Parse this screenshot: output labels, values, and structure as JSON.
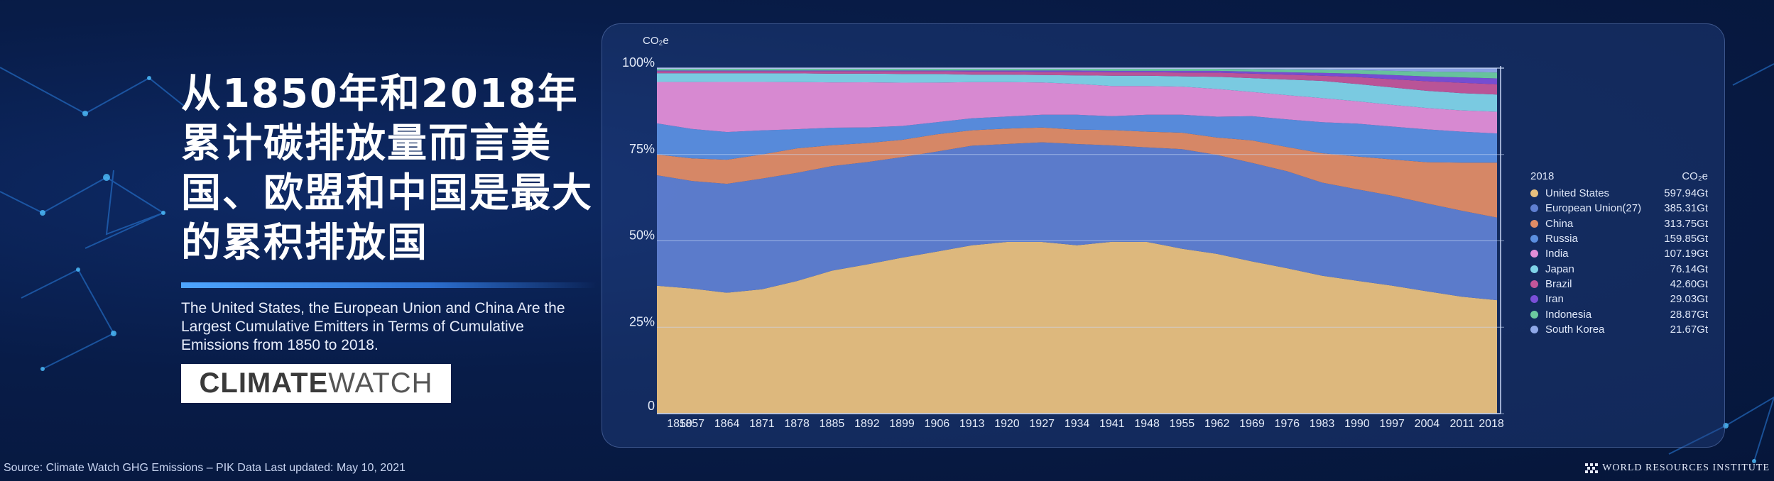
{
  "heading_zh": "从1850年和2018年累计碳排放量而言美国、欧盟和中国是最大的累积排放国",
  "heading_en": "The United States, the European Union and China Are the Largest Cumulative Emitters in Terms of Cumulative Emissions from 1850 to 2018.",
  "logo": {
    "bold": "CLIMATE",
    "light": "WATCH"
  },
  "source": "Source: Climate Watch GHG Emissions – PIK Data Last updated: May 10, 2021",
  "publisher": "WORLD RESOURCES INSTITUTE",
  "chart_data": {
    "type": "area",
    "stacked": true,
    "normalized": true,
    "ylabel": "CO₂e",
    "ylim": [
      0,
      100
    ],
    "ytick_labels": [
      "0",
      "25%",
      "50%",
      "75%",
      "100%"
    ],
    "x": [
      "1850",
      "1857",
      "1864",
      "1871",
      "1878",
      "1885",
      "1892",
      "1899",
      "1906",
      "1913",
      "1920",
      "1927",
      "1934",
      "1941",
      "1948",
      "1955",
      "1962",
      "1969",
      "1976",
      "1983",
      "1990",
      "1997",
      "2004",
      "2011",
      "2018"
    ],
    "grid": true,
    "legend": {
      "position": "right",
      "title": "2018",
      "value_header": "CO₂e"
    },
    "series": [
      {
        "name": "United States",
        "color": "#e8c07e",
        "total_2018": "597.94Gt",
        "values": [
          37,
          36,
          35,
          36,
          38,
          41,
          43,
          45,
          47,
          49,
          50,
          50,
          49,
          50,
          50,
          48,
          46,
          44,
          42,
          40,
          38.5,
          37,
          35.5,
          34,
          33
        ]
      },
      {
        "name": "European Union(27)",
        "color": "#5f7fd1",
        "total_2018": "385.31Gt",
        "values": [
          32,
          31,
          31.5,
          32,
          31,
          30,
          29.5,
          29,
          29,
          29,
          28.5,
          29,
          29.5,
          28,
          27.5,
          29,
          28.5,
          28.5,
          28,
          27,
          26.5,
          26,
          25.5,
          25,
          24
        ]
      },
      {
        "name": "China",
        "color": "#e08c66",
        "total_2018": "313.75Gt",
        "values": [
          6,
          6.5,
          7,
          7,
          7,
          6,
          5.5,
          5,
          5,
          4.5,
          4.5,
          4.3,
          4.2,
          4.5,
          4.6,
          4.8,
          5,
          6.5,
          7,
          8.5,
          9.5,
          10.5,
          12,
          14,
          16
        ]
      },
      {
        "name": "Russia",
        "color": "#5b8fe0",
        "total_2018": "159.85Gt",
        "values": [
          9,
          8.5,
          8,
          7,
          5.5,
          5,
          4.5,
          4,
          3.5,
          3.5,
          3.5,
          3.7,
          4.3,
          4,
          4.9,
          5.2,
          6,
          7,
          8,
          9,
          9.5,
          9.5,
          9.5,
          9,
          8.5
        ]
      },
      {
        "name": "India",
        "color": "#e28ed7",
        "total_2018": "107.19Gt",
        "values": [
          12,
          13.5,
          14.5,
          14,
          13.5,
          13,
          13,
          12.5,
          11.5,
          10.5,
          10,
          9.4,
          9,
          8.8,
          8.4,
          8.2,
          8,
          7,
          7,
          7,
          6.5,
          6.3,
          6.2,
          6.2,
          6.3
        ]
      },
      {
        "name": "Japan",
        "color": "#7fd3e8",
        "total_2018": "76.14Gt",
        "values": [
          2.5,
          2.5,
          2.5,
          2.5,
          2.5,
          2.5,
          2.5,
          2.5,
          2.5,
          2.2,
          2.2,
          2.2,
          2.5,
          3,
          3,
          3,
          3.5,
          4,
          4.5,
          5,
          5,
          5,
          5,
          5,
          5
        ]
      },
      {
        "name": "Brazil",
        "color": "#c2569a",
        "total_2018": "42.60Gt",
        "values": [
          0.6,
          0.6,
          0.6,
          0.6,
          0.6,
          0.7,
          0.7,
          0.8,
          0.8,
          0.9,
          0.9,
          0.9,
          1,
          1,
          1,
          1.1,
          1.2,
          1.3,
          1.4,
          1.5,
          2,
          2.4,
          2.8,
          3,
          3
        ]
      },
      {
        "name": "Iran",
        "color": "#7a4fd8",
        "total_2018": "29.03Gt",
        "values": [
          0.2,
          0.2,
          0.2,
          0.2,
          0.2,
          0.2,
          0.2,
          0.2,
          0.2,
          0.3,
          0.3,
          0.4,
          0.4,
          0.4,
          0.4,
          0.5,
          0.5,
          0.6,
          0.7,
          0.8,
          1,
          1.2,
          1.4,
          1.6,
          1.7
        ]
      },
      {
        "name": "Indonesia",
        "color": "#6ccaa0",
        "total_2018": "28.87Gt",
        "values": [
          0.5,
          0.5,
          0.5,
          0.5,
          0.5,
          0.5,
          0.5,
          0.5,
          0.5,
          0.5,
          0.5,
          0.5,
          0.5,
          0.6,
          0.6,
          0.6,
          0.6,
          0.7,
          0.8,
          0.9,
          1,
          1.2,
          1.4,
          1.6,
          1.7
        ]
      },
      {
        "name": "South Korea",
        "color": "#8fa8e8",
        "total_2018": "21.67Gt",
        "values": [
          0.2,
          0.2,
          0.2,
          0.2,
          0.2,
          0.2,
          0.2,
          0.2,
          0.2,
          0.2,
          0.2,
          0.2,
          0.2,
          0.2,
          0.2,
          0.2,
          0.2,
          0.3,
          0.4,
          0.5,
          0.6,
          0.8,
          1,
          1.1,
          1.3
        ]
      }
    ]
  }
}
